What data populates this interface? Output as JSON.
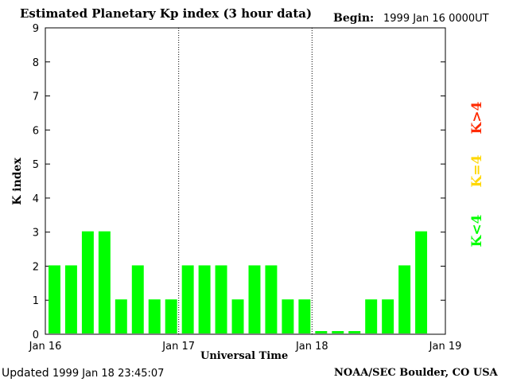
{
  "header": {
    "title": "Estimated Planetary Kp index (3 hour data)",
    "begin_label": "Begin:",
    "begin_value": "1999 Jan 16 0000UT"
  },
  "footer": {
    "updated_label": "Updated",
    "updated_value": "1999 Jan 18 23:45:07",
    "org": "NOAA/SEC Boulder, CO USA"
  },
  "legend": {
    "gt4": "K>4",
    "eq4": "K=4",
    "lt4": "K<4"
  },
  "colors": {
    "bar_lt4": "#00ff00",
    "k_gt4": "#ff2a00",
    "k_eq4": "#ffd700",
    "k_lt4": "#00ff00"
  },
  "chart_data": {
    "type": "bar",
    "title": "Estimated Planetary Kp index (3 hour data)",
    "xlabel": "Universal Time",
    "ylabel": "K index",
    "ylim": [
      0,
      9
    ],
    "yticks": [
      "0",
      "1",
      "2",
      "3",
      "4",
      "5",
      "6",
      "7",
      "8",
      "9"
    ],
    "xtick_labels": [
      "Jan 16",
      "Jan 17",
      "Jan 18",
      "Jan 19"
    ],
    "day_separators": [
      "Jan 17",
      "Jan 18"
    ],
    "grid": false,
    "values": [
      2,
      2,
      3,
      3,
      1,
      2,
      1,
      1,
      2,
      2,
      2,
      1,
      2,
      2,
      1,
      1,
      0,
      0,
      0,
      1,
      1,
      2,
      3
    ]
  }
}
